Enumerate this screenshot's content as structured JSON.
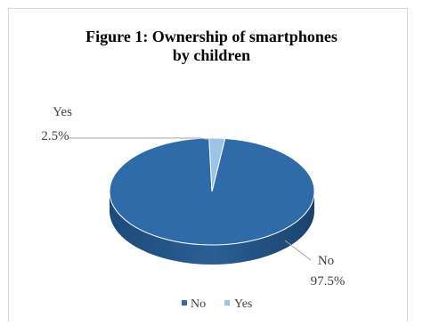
{
  "chart_data": {
    "type": "pie",
    "title_lines": [
      "Figure 1: Ownership of smartphones",
      "by children"
    ],
    "slices": [
      {
        "label": "No",
        "value": 97.5,
        "display": "97.5%",
        "color": "#2e6ba8"
      },
      {
        "label": "Yes",
        "value": 2.5,
        "display": "2.5%",
        "color": "#9dc3e6"
      }
    ],
    "legend": [
      "No",
      "Yes"
    ],
    "legend_position": "bottom",
    "style": "3d"
  }
}
